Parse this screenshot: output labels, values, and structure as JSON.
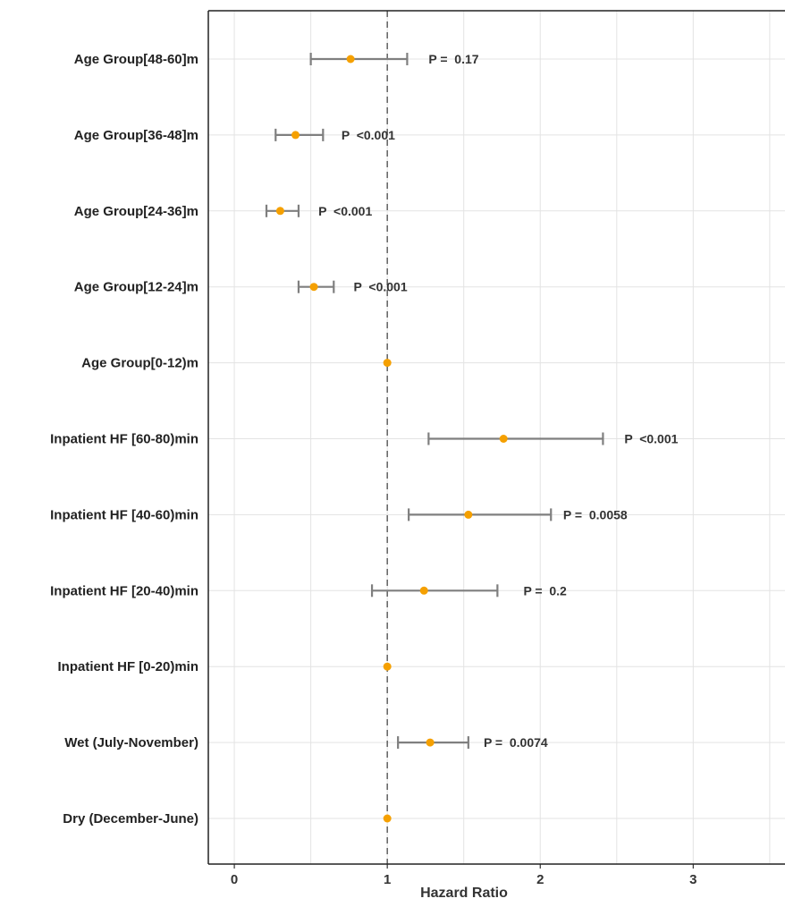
{
  "chart_data": {
    "type": "forest",
    "xlabel": "Hazard Ratio",
    "xlim": [
      -0.17,
      3.6
    ],
    "xticks": [
      0,
      1,
      2,
      3
    ],
    "reference_line": 1,
    "grid": true,
    "colors": {
      "point": "#f5a000",
      "ci": "#7f7f7f",
      "reference": "#555555",
      "grid": "#e3e3e3"
    },
    "rows": [
      {
        "label": "Age Group[48-60]m",
        "hr": 0.76,
        "lower": 0.5,
        "upper": 1.13,
        "p_label": "P =  0.17",
        "p_x": 1.27
      },
      {
        "label": "Age Group[36-48]m",
        "hr": 0.4,
        "lower": 0.27,
        "upper": 0.58,
        "p_label": "P  <0.001",
        "p_x": 0.7
      },
      {
        "label": "Age Group[24-36]m",
        "hr": 0.3,
        "lower": 0.21,
        "upper": 0.42,
        "p_label": "P  <0.001",
        "p_x": 0.55
      },
      {
        "label": "Age Group[12-24]m",
        "hr": 0.52,
        "lower": 0.42,
        "upper": 0.65,
        "p_label": "P  <0.001",
        "p_x": 0.78
      },
      {
        "label": "Age Group[0-12)m",
        "hr": 1,
        "lower": null,
        "upper": null,
        "p_label": "",
        "p_x": null
      },
      {
        "label": "Inpatient HF [60-80)min",
        "hr": 1.76,
        "lower": 1.27,
        "upper": 2.41,
        "p_label": "P  <0.001",
        "p_x": 2.55
      },
      {
        "label": "Inpatient HF [40-60)min",
        "hr": 1.53,
        "lower": 1.14,
        "upper": 2.07,
        "p_label": "P =  0.0058",
        "p_x": 2.15
      },
      {
        "label": "Inpatient HF [20-40)min",
        "hr": 1.24,
        "lower": 0.9,
        "upper": 1.72,
        "p_label": "P =  0.2",
        "p_x": 1.89
      },
      {
        "label": "Inpatient HF [0-20)min",
        "hr": 1,
        "lower": null,
        "upper": null,
        "p_label": "",
        "p_x": null
      },
      {
        "label": "Wet (July-November)",
        "hr": 1.28,
        "lower": 1.07,
        "upper": 1.53,
        "p_label": "P =  0.0074",
        "p_x": 1.63
      },
      {
        "label": "Dry (December-June)",
        "hr": 1,
        "lower": null,
        "upper": null,
        "p_label": "",
        "p_x": null
      }
    ]
  }
}
